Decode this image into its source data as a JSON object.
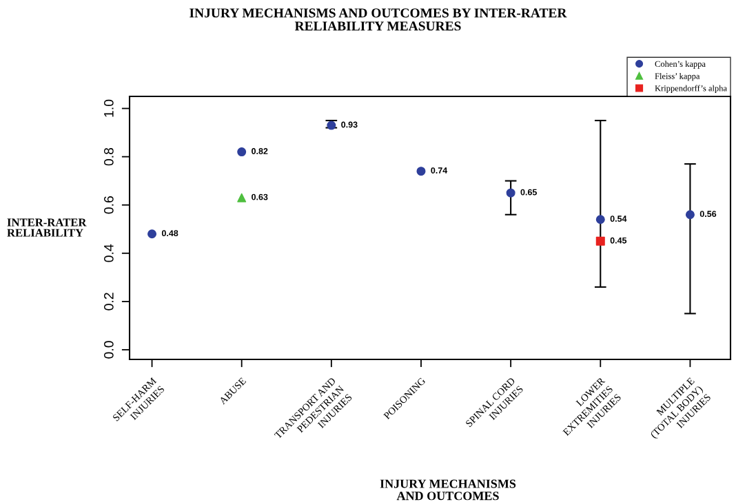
{
  "chart_data": {
    "type": "scatter",
    "title": "INJURY MECHANISMS AND OUTCOMES BY INTER-RATER\nRELIABILITY MEASURES",
    "xlabel": "INJURY MECHANISMS\nAND OUTCOMES",
    "ylabel": "INTER-RATER\nRELIABILITY",
    "categories": [
      "SELF-HARM\nINJURIES",
      "ABUSE",
      "TRANSPORT AND\nPEDESTRIAN\nINJURIES",
      "POISONING",
      "SPINAL CORD\nINJURIES",
      "LOWER\nEXTREMITIES\nINJURIES",
      "MULTIPLE\n(TOTAL BODY)\nINJURIES"
    ],
    "series": [
      {
        "name": "Cohen’s kappa",
        "color": "#2e3f9b",
        "marker": "circle",
        "values": [
          0.48,
          0.82,
          0.93,
          0.74,
          0.65,
          0.54,
          0.56
        ],
        "errors": [
          null,
          null,
          [
            0.92,
            0.95
          ],
          null,
          [
            0.56,
            0.7
          ],
          [
            0.26,
            0.95
          ],
          [
            0.15,
            0.77
          ]
        ]
      },
      {
        "name": "Fleiss’ kappa",
        "color": "#4fbf3f",
        "marker": "triangle",
        "values": [
          null,
          0.63,
          null,
          null,
          null,
          null,
          null
        ]
      },
      {
        "name": "Krippendorff’s alpha",
        "color": "#e8221f",
        "marker": "square",
        "values": [
          null,
          null,
          null,
          null,
          null,
          0.45,
          null
        ]
      }
    ],
    "ylim": [
      -0.04,
      1.05
    ],
    "yticks": [
      {
        "value": 0,
        "label": "0.0"
      },
      {
        "value": 0.2,
        "label": "0.2"
      },
      {
        "value": 0.4,
        "label": "0.4"
      },
      {
        "value": 0.6,
        "label": "0.6"
      },
      {
        "value": 0.8,
        "label": "0.8"
      },
      {
        "value": 1,
        "label": "1.0"
      }
    ],
    "data_labels": true,
    "grid": false,
    "legend": "top right"
  }
}
